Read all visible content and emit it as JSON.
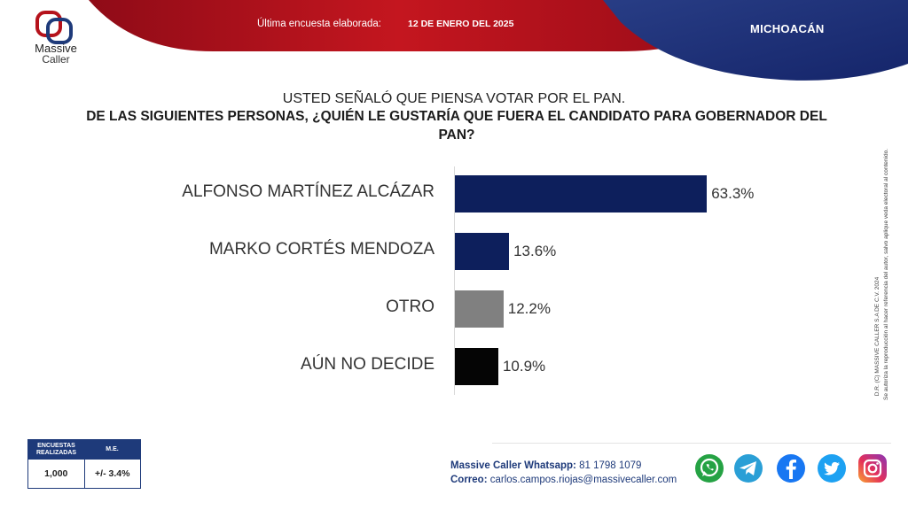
{
  "header": {
    "survey_label": "Última encuesta elaborada:",
    "survey_date": "12 DE ENERO DEL 2025",
    "region": "MICHOACÁN"
  },
  "logo": {
    "line1": "Massive",
    "line2": "Caller"
  },
  "question": {
    "intro": "USTED SEÑALÓ QUE PIENSA VOTAR POR EL PAN.",
    "main": "DE LAS SIGUIENTES PERSONAS, ¿QUIÉN LE GUSTARÍA QUE FUERA EL CANDIDATO PARA GOBERNADOR DEL PAN?"
  },
  "chart_data": {
    "type": "bar",
    "orientation": "horizontal",
    "categories": [
      "ALFONSO MARTÍNEZ ALCÁZAR",
      "MARKO CORTÉS MENDOZA",
      "OTRO",
      "AÚN NO DECIDE"
    ],
    "values": [
      63.3,
      13.6,
      12.2,
      10.9
    ],
    "labels": [
      "63.3%",
      "13.6%",
      "12.2%",
      "10.9%"
    ],
    "colors": [
      "#0d1f5c",
      "#0d1f5c",
      "#808080",
      "#050505"
    ],
    "xlim": [
      0,
      100
    ]
  },
  "side_note": {
    "line1": "D.R. (C) MASSIVE CALLER S.A DE C.V. 2024",
    "line2": "Se autoriza la reproducción al hacer referencia del autor, salvo aplique veda electoral al contenido."
  },
  "stats": {
    "h1": "ENCUESTAS REALIZADAS",
    "h2": "M.E.",
    "v1": "1,000",
    "v2": "+/- 3.4%"
  },
  "contact": {
    "whatsapp_label": "Massive Caller Whatsapp:",
    "whatsapp_number": "81 1798 1079",
    "email_label": "Correo:",
    "email": "carlos.campos.riojas@massivecaller.com"
  },
  "icons": [
    "whatsapp-icon",
    "telegram-icon",
    "facebook-icon",
    "twitter-icon",
    "instagram-icon"
  ]
}
